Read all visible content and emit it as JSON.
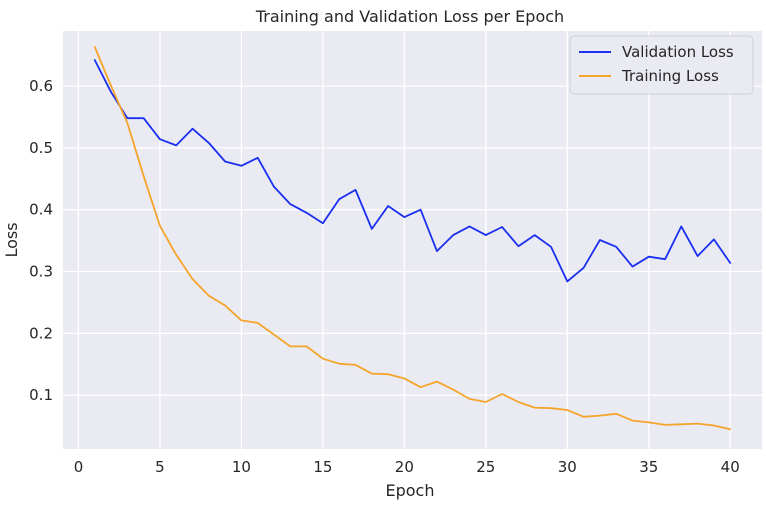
{
  "chart_data": {
    "type": "line",
    "title": "Training and Validation Loss per Epoch",
    "xlabel": "Epoch",
    "ylabel": "Loss",
    "xlim": [
      -0.95,
      41.95
    ],
    "ylim": [
      0.013,
      0.689
    ],
    "xticks": [
      0,
      5,
      10,
      15,
      20,
      25,
      30,
      35,
      40
    ],
    "yticks": [
      0.1,
      0.2,
      0.3,
      0.4,
      0.5,
      0.6
    ],
    "ytick_labels": [
      "0.1",
      "0.2",
      "0.3",
      "0.4",
      "0.5",
      "0.6"
    ],
    "grid": true,
    "legend_position": "top-right",
    "x": [
      1,
      2,
      3,
      4,
      5,
      6,
      7,
      8,
      9,
      10,
      11,
      12,
      13,
      14,
      15,
      16,
      17,
      18,
      19,
      20,
      21,
      22,
      23,
      24,
      25,
      26,
      27,
      28,
      29,
      30,
      31,
      32,
      33,
      34,
      35,
      36,
      37,
      38,
      39,
      40
    ],
    "series": [
      {
        "name": "Validation Loss",
        "color": "#1a2ff0",
        "values": [
          0.642,
          0.59,
          0.548,
          0.548,
          0.514,
          0.504,
          0.531,
          0.508,
          0.478,
          0.471,
          0.484,
          0.437,
          0.409,
          0.395,
          0.378,
          0.417,
          0.432,
          0.369,
          0.406,
          0.388,
          0.4,
          0.333,
          0.359,
          0.373,
          0.359,
          0.372,
          0.341,
          0.359,
          0.34,
          0.284,
          0.306,
          0.351,
          0.34,
          0.308,
          0.324,
          0.32,
          0.373,
          0.325,
          0.352,
          0.314
        ]
      },
      {
        "name": "Training Loss",
        "color": "#f5a42c",
        "values": [
          0.663,
          0.6,
          0.54,
          0.454,
          0.374,
          0.327,
          0.288,
          0.261,
          0.245,
          0.221,
          0.217,
          0.198,
          0.179,
          0.179,
          0.159,
          0.151,
          0.149,
          0.135,
          0.134,
          0.127,
          0.113,
          0.122,
          0.109,
          0.094,
          0.089,
          0.102,
          0.089,
          0.08,
          0.079,
          0.076,
          0.065,
          0.067,
          0.07,
          0.059,
          0.056,
          0.052,
          0.053,
          0.054,
          0.051,
          0.045
        ]
      }
    ]
  }
}
